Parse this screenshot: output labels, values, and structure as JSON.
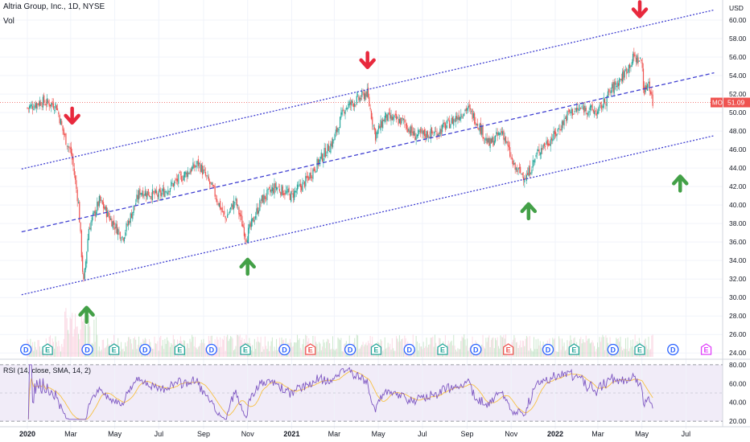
{
  "header": {
    "title": "Altria Group, Inc., 1D, NYSE",
    "vol_label": "Vol"
  },
  "price_axis": {
    "currency": "USD"
  },
  "colors": {
    "up": "#26a69a",
    "down": "#ef5350",
    "channel": "#3f3fd1",
    "arrow_down": "#e8293d",
    "arrow_up": "#43a047",
    "rsi_line": "#7e57c2",
    "rsi_sma": "#f7c042",
    "price_tag": "#ef5350"
  },
  "chart_data": [
    {
      "type": "candlestick",
      "title": "Altria Group, Inc., 1D, NYSE",
      "ticker": "MO",
      "last_price": "51.09",
      "ylim": [
        23.5,
        62
      ],
      "y_ticks": [
        "24.00",
        "26.00",
        "28.00",
        "30.00",
        "32.00",
        "34.00",
        "36.00",
        "38.00",
        "40.00",
        "42.00",
        "44.00",
        "46.00",
        "48.00",
        "50.00",
        "52.00",
        "54.00",
        "56.00",
        "58.00",
        "60.00"
      ],
      "x_ticks": [
        "2020",
        "Mar",
        "May",
        "Jul",
        "Sep",
        "Nov",
        "2021",
        "Mar",
        "May",
        "Jul",
        "Sep",
        "Nov",
        "2022",
        "Mar",
        "May",
        "Jul"
      ],
      "x_tick_bold": [
        "2020",
        "2021",
        "2022"
      ],
      "grid": true,
      "approx_close_path": [
        [
          "2020-01-01",
          50.5
        ],
        [
          "2020-01-20",
          51.2
        ],
        [
          "2020-02-10",
          50.8
        ],
        [
          "2020-02-21",
          47.5
        ],
        [
          "2020-03-02",
          45.5
        ],
        [
          "2020-03-12",
          40.0
        ],
        [
          "2020-03-17",
          33.5
        ],
        [
          "2020-03-19",
          31.5
        ],
        [
          "2020-03-26",
          37.5
        ],
        [
          "2020-04-10",
          40.5
        ],
        [
          "2020-04-25",
          38.5
        ],
        [
          "2020-05-12",
          36.5
        ],
        [
          "2020-06-05",
          41.5
        ],
        [
          "2020-07-01",
          41.0
        ],
        [
          "2020-08-01",
          43.0
        ],
        [
          "2020-08-25",
          44.5
        ],
        [
          "2020-09-15",
          41.5
        ],
        [
          "2020-10-01",
          38.5
        ],
        [
          "2020-10-15",
          40.5
        ],
        [
          "2020-10-30",
          36.5
        ],
        [
          "2020-11-20",
          40.5
        ],
        [
          "2020-12-10",
          42.0
        ],
        [
          "2020-12-31",
          41.0
        ],
        [
          "2021-01-20",
          42.5
        ],
        [
          "2021-02-10",
          45.0
        ],
        [
          "2021-02-28",
          47.0
        ],
        [
          "2021-03-15",
          50.5
        ],
        [
          "2021-04-05",
          51.5
        ],
        [
          "2021-04-15",
          52.2
        ],
        [
          "2021-04-27",
          47.5
        ],
        [
          "2021-05-10",
          49.5
        ],
        [
          "2021-06-05",
          49.0
        ],
        [
          "2021-06-20",
          47.5
        ],
        [
          "2021-07-20",
          47.8
        ],
        [
          "2021-08-10",
          49.0
        ],
        [
          "2021-09-01",
          50.5
        ],
        [
          "2021-09-15",
          49.0
        ],
        [
          "2021-10-01",
          46.5
        ],
        [
          "2021-10-20",
          48.0
        ],
        [
          "2021-11-05",
          44.0
        ],
        [
          "2021-11-22",
          43.0
        ],
        [
          "2021-12-10",
          46.0
        ],
        [
          "2021-12-31",
          47.5
        ],
        [
          "2022-01-20",
          50.0
        ],
        [
          "2022-02-10",
          50.5
        ],
        [
          "2022-03-01",
          50.0
        ],
        [
          "2022-03-20",
          52.5
        ],
        [
          "2022-04-05",
          54.0
        ],
        [
          "2022-04-20",
          56.0
        ],
        [
          "2022-05-01",
          55.5
        ],
        [
          "2022-05-04",
          52.0
        ],
        [
          "2022-05-10",
          53.5
        ],
        [
          "2022-05-16",
          51.09
        ]
      ],
      "annotations": {
        "channel_lines": [
          {
            "style": "upper",
            "points": [
              [
                "2019-12-24",
                43.9
              ],
              [
                "2022-08-09",
                61.1
              ]
            ]
          },
          {
            "style": "middle",
            "points": [
              [
                "2019-12-24",
                37.1
              ],
              [
                "2022-08-09",
                54.3
              ]
            ]
          },
          {
            "style": "lower",
            "points": [
              [
                "2019-12-24",
                30.3
              ],
              [
                "2022-08-09",
                47.5
              ]
            ]
          }
        ],
        "arrows_down": [
          [
            "2020-03-03",
            49.5
          ],
          [
            "2021-04-16",
            55.5
          ],
          [
            "2022-04-28",
            61.0
          ]
        ],
        "arrows_up": [
          [
            "2020-03-23",
            28.3
          ],
          [
            "2020-11-01",
            33.5
          ],
          [
            "2021-11-25",
            39.5
          ],
          [
            "2022-06-23",
            42.5
          ]
        ],
        "event_markers": [
          {
            "date": "2019-12-30",
            "label": "D",
            "kind": "div"
          },
          {
            "date": "2020-01-29",
            "label": "E",
            "kind": "earn"
          },
          {
            "date": "2020-03-24",
            "label": "D",
            "kind": "div"
          },
          {
            "date": "2020-04-30",
            "label": "E",
            "kind": "earn"
          },
          {
            "date": "2020-06-12",
            "label": "D",
            "kind": "div"
          },
          {
            "date": "2020-07-30",
            "label": "E",
            "kind": "earn"
          },
          {
            "date": "2020-09-12",
            "label": "D",
            "kind": "div"
          },
          {
            "date": "2020-10-29",
            "label": "E",
            "kind": "earn"
          },
          {
            "date": "2020-12-22",
            "label": "D",
            "kind": "div"
          },
          {
            "date": "2021-01-27",
            "label": "E",
            "kind": "earn_red"
          },
          {
            "date": "2021-03-23",
            "label": "D",
            "kind": "div"
          },
          {
            "date": "2021-04-28",
            "label": "E",
            "kind": "earn"
          },
          {
            "date": "2021-06-13",
            "label": "D",
            "kind": "div"
          },
          {
            "date": "2021-07-29",
            "label": "E",
            "kind": "earn"
          },
          {
            "date": "2021-09-13",
            "label": "D",
            "kind": "div"
          },
          {
            "date": "2021-10-28",
            "label": "E",
            "kind": "earn_red"
          },
          {
            "date": "2021-12-22",
            "label": "D",
            "kind": "div"
          },
          {
            "date": "2022-01-27",
            "label": "E",
            "kind": "earn"
          },
          {
            "date": "2022-03-22",
            "label": "D",
            "kind": "div"
          },
          {
            "date": "2022-04-28",
            "label": "E",
            "kind": "earn"
          },
          {
            "date": "2022-06-13",
            "label": "D",
            "kind": "future_div"
          },
          {
            "date": "2022-07-29",
            "label": "E",
            "kind": "future_earn"
          }
        ]
      }
    },
    {
      "type": "line",
      "title": "RSI (14, close, SMA, 14, 2)",
      "ylim": [
        15,
        85
      ],
      "y_ticks": [
        "20.00",
        "40.00",
        "60.00",
        "80.00"
      ],
      "bands": [
        30,
        50,
        70
      ],
      "dashed_levels": [
        20,
        80
      ],
      "series": [
        "RSI",
        "SMA"
      ]
    }
  ]
}
